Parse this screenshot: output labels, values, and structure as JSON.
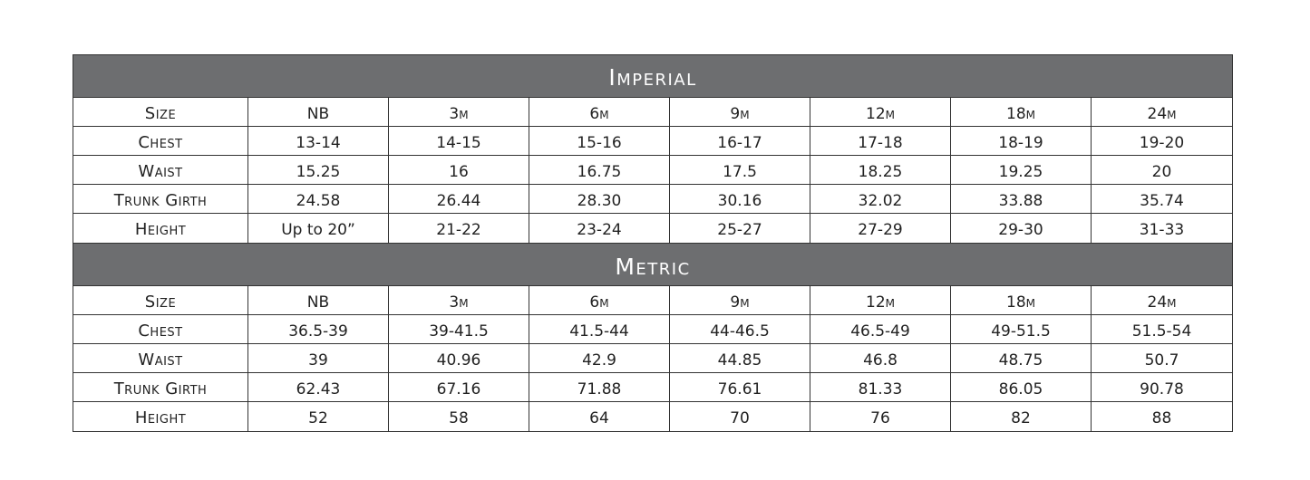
{
  "sections": [
    {
      "title": "Imperial",
      "rows": [
        {
          "label": "Size",
          "values": [
            "NB",
            "3m",
            "6m",
            "9m",
            "12m",
            "18m",
            "24m"
          ]
        },
        {
          "label": "Chest",
          "values": [
            "13-14",
            "14-15",
            "15-16",
            "16-17",
            "17-18",
            "18-19",
            "19-20"
          ]
        },
        {
          "label": "Waist",
          "values": [
            "15.25",
            "16",
            "16.75",
            "17.5",
            "18.25",
            "19.25",
            "20"
          ]
        },
        {
          "label": "Trunk Girth",
          "values": [
            "24.58",
            "26.44",
            "28.30",
            "30.16",
            "32.02",
            "33.88",
            "35.74"
          ]
        },
        {
          "label": "Height",
          "values": [
            "Up to 20”",
            "21-22",
            "23-24",
            "25-27",
            "27-29",
            "29-30",
            "31-33"
          ]
        }
      ]
    },
    {
      "title": "Metric",
      "rows": [
        {
          "label": "Size",
          "values": [
            "NB",
            "3m",
            "6m",
            "9m",
            "12m",
            "18m",
            "24m"
          ]
        },
        {
          "label": "Chest",
          "values": [
            "36.5-39",
            "39-41.5",
            "41.5-44",
            "44-46.5",
            "46.5-49",
            "49-51.5",
            "51.5-54"
          ]
        },
        {
          "label": "Waist",
          "values": [
            "39",
            "40.96",
            "42.9",
            "44.85",
            "46.8",
            "48.75",
            "50.7"
          ]
        },
        {
          "label": "Trunk Girth",
          "values": [
            "62.43",
            "67.16",
            "71.88",
            "76.61",
            "81.33",
            "86.05",
            "90.78"
          ]
        },
        {
          "label": "Height",
          "values": [
            "52",
            "58",
            "64",
            "70",
            "76",
            "82",
            "88"
          ]
        }
      ]
    }
  ],
  "colors": {
    "header_bg": "#6d6e70",
    "header_text": "#ffffff",
    "border": "#333333"
  }
}
